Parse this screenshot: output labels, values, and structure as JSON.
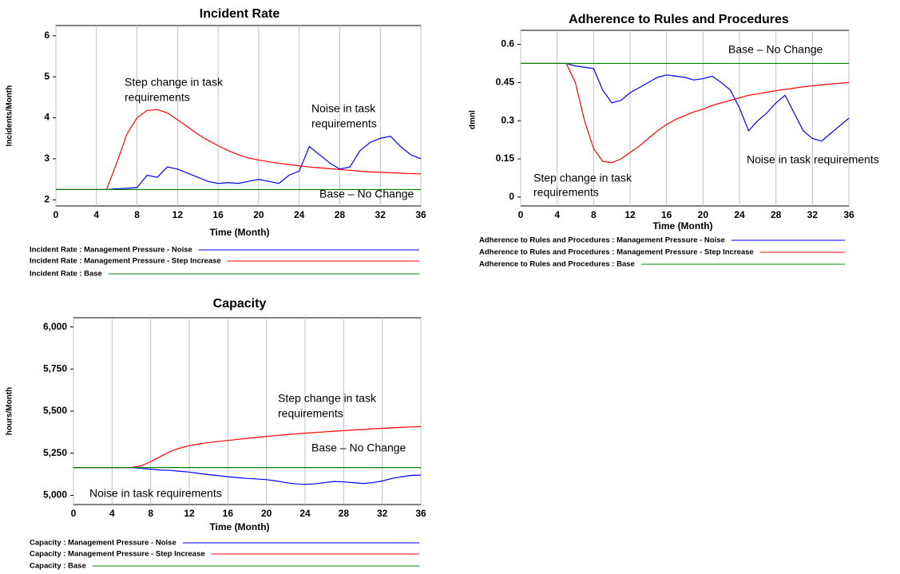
{
  "chart_data": [
    {
      "type": "line",
      "title": "Incident Rate",
      "x_label": "Time (Month)",
      "y_label": "Incidents/Month",
      "x": [
        0,
        1,
        2,
        3,
        4,
        5,
        6,
        7,
        8,
        9,
        10,
        11,
        12,
        13,
        14,
        15,
        16,
        17,
        18,
        19,
        20,
        21,
        22,
        23,
        24,
        25,
        26,
        27,
        28,
        29,
        30,
        31,
        32,
        33,
        34,
        35,
        36
      ],
      "xlim": [
        0,
        36
      ],
      "xticks": [
        0,
        4,
        8,
        12,
        16,
        20,
        24,
        28,
        32,
        36
      ],
      "ylim": [
        1.85,
        6.25
      ],
      "yticks": [
        2,
        3,
        4,
        5,
        6
      ],
      "grid": true,
      "series": [
        {
          "name": "Incident Rate : Management Pressure - Noise",
          "color": "#0000ff",
          "values": [
            2.25,
            2.25,
            2.25,
            2.25,
            2.25,
            2.25,
            2.27,
            2.28,
            2.3,
            2.6,
            2.55,
            2.8,
            2.75,
            2.65,
            2.55,
            2.45,
            2.4,
            2.42,
            2.4,
            2.45,
            2.5,
            2.45,
            2.4,
            2.6,
            2.7,
            3.3,
            3.1,
            2.9,
            2.75,
            2.8,
            3.2,
            3.4,
            3.5,
            3.55,
            3.3,
            3.1,
            3.0
          ]
        },
        {
          "name": "Incident Rate : Management Pressure - Step Increase",
          "color": "#ff0000",
          "values": [
            2.25,
            2.25,
            2.25,
            2.25,
            2.25,
            2.25,
            2.9,
            3.6,
            4.0,
            4.18,
            4.2,
            4.12,
            3.95,
            3.78,
            3.6,
            3.45,
            3.32,
            3.2,
            3.1,
            3.02,
            2.97,
            2.93,
            2.89,
            2.86,
            2.83,
            2.8,
            2.78,
            2.76,
            2.74,
            2.72,
            2.7,
            2.68,
            2.67,
            2.66,
            2.65,
            2.64,
            2.63
          ]
        },
        {
          "name": "Incident Rate : Base",
          "color": "#008000",
          "values": [
            2.25,
            2.25,
            2.25,
            2.25,
            2.25,
            2.25,
            2.25,
            2.25,
            2.25,
            2.25,
            2.25,
            2.25,
            2.25,
            2.25,
            2.25,
            2.25,
            2.25,
            2.25,
            2.25,
            2.25,
            2.25,
            2.25,
            2.25,
            2.25,
            2.25,
            2.25,
            2.25,
            2.25,
            2.25,
            2.25,
            2.25,
            2.25,
            2.25,
            2.25,
            2.25,
            2.25,
            2.25
          ]
        }
      ],
      "annotations": [
        [
          "Step change in task",
          "requirements"
        ],
        [
          "Noise in task",
          "requirements"
        ],
        [
          "Base – No Change"
        ]
      ]
    },
    {
      "type": "line",
      "title": "Adherence to Rules and Procedures",
      "x_label": "Time (Month)",
      "y_label": "dmnl",
      "x": [
        0,
        1,
        2,
        3,
        4,
        5,
        6,
        7,
        8,
        9,
        10,
        11,
        12,
        13,
        14,
        15,
        16,
        17,
        18,
        19,
        20,
        21,
        22,
        23,
        24,
        25,
        26,
        27,
        28,
        29,
        30,
        31,
        32,
        33,
        34,
        35,
        36
      ],
      "xlim": [
        0,
        36
      ],
      "xticks": [
        0,
        4,
        8,
        12,
        16,
        20,
        24,
        28,
        32,
        36
      ],
      "ylim": [
        -0.035,
        0.655
      ],
      "yticks": [
        0,
        0.15,
        0.3,
        0.45,
        0.6
      ],
      "grid": true,
      "series": [
        {
          "name": "Adherence to Rules and Procedures : Management Pressure - Noise",
          "color": "#0000ff",
          "values": [
            0.525,
            0.525,
            0.525,
            0.525,
            0.525,
            0.525,
            0.515,
            0.51,
            0.505,
            0.42,
            0.37,
            0.38,
            0.41,
            0.43,
            0.45,
            0.47,
            0.48,
            0.475,
            0.47,
            0.46,
            0.465,
            0.475,
            0.45,
            0.42,
            0.35,
            0.26,
            0.3,
            0.33,
            0.37,
            0.4,
            0.33,
            0.26,
            0.23,
            0.22,
            0.25,
            0.28,
            0.31
          ]
        },
        {
          "name": "Adherence to Rules and Procedures : Management Pressure - Step Increase",
          "color": "#ff0000",
          "values": [
            0.525,
            0.525,
            0.525,
            0.525,
            0.525,
            0.525,
            0.45,
            0.3,
            0.19,
            0.14,
            0.135,
            0.15,
            0.175,
            0.2,
            0.23,
            0.26,
            0.285,
            0.305,
            0.32,
            0.335,
            0.345,
            0.36,
            0.37,
            0.38,
            0.39,
            0.4,
            0.405,
            0.412,
            0.418,
            0.423,
            0.428,
            0.433,
            0.437,
            0.441,
            0.444,
            0.447,
            0.45
          ]
        },
        {
          "name": "Adherence to Rules and Procedures : Base",
          "color": "#008000",
          "values": [
            0.525,
            0.525,
            0.525,
            0.525,
            0.525,
            0.525,
            0.525,
            0.525,
            0.525,
            0.525,
            0.525,
            0.525,
            0.525,
            0.525,
            0.525,
            0.525,
            0.525,
            0.525,
            0.525,
            0.525,
            0.525,
            0.525,
            0.525,
            0.525,
            0.525,
            0.525,
            0.525,
            0.525,
            0.525,
            0.525,
            0.525,
            0.525,
            0.525,
            0.525,
            0.525,
            0.525,
            0.525
          ]
        }
      ],
      "annotations": [
        [
          "Base – No Change"
        ],
        [
          "Step change in task",
          "requirements"
        ],
        [
          "Noise in task requirements"
        ]
      ]
    },
    {
      "type": "line",
      "title": "Capacity",
      "x_label": "Time (Month)",
      "y_label": "hours/Month",
      "x": [
        0,
        1,
        2,
        3,
        4,
        5,
        6,
        7,
        8,
        9,
        10,
        11,
        12,
        13,
        14,
        15,
        16,
        17,
        18,
        19,
        20,
        21,
        22,
        23,
        24,
        25,
        26,
        27,
        28,
        29,
        30,
        31,
        32,
        33,
        34,
        35,
        36
      ],
      "xlim": [
        0,
        36
      ],
      "xticks": [
        0,
        4,
        8,
        12,
        16,
        20,
        24,
        28,
        32,
        36
      ],
      "ylim": [
        4945,
        6055
      ],
      "yticks": [
        {
          "value": 5000,
          "label": "5,000"
        },
        {
          "value": 5250,
          "label": "5,250"
        },
        {
          "value": 5500,
          "label": "5,500"
        },
        {
          "value": 5750,
          "label": "5,750"
        },
        {
          "value": 6000,
          "label": "6,000"
        }
      ],
      "grid": true,
      "series": [
        {
          "name": "Capacity : Management Pressure - Noise",
          "color": "#0000ff",
          "values": [
            5165,
            5165,
            5165,
            5165,
            5165,
            5165,
            5165,
            5160,
            5155,
            5150,
            5148,
            5143,
            5138,
            5130,
            5123,
            5117,
            5110,
            5105,
            5100,
            5097,
            5093,
            5085,
            5075,
            5068,
            5065,
            5068,
            5075,
            5082,
            5080,
            5075,
            5070,
            5075,
            5085,
            5100,
            5110,
            5118,
            5120
          ]
        },
        {
          "name": "Capacity : Management Pressure - Step Increase",
          "color": "#ff0000",
          "values": [
            5165,
            5165,
            5165,
            5165,
            5165,
            5165,
            5165,
            5175,
            5200,
            5230,
            5260,
            5280,
            5295,
            5305,
            5313,
            5320,
            5326,
            5332,
            5338,
            5344,
            5350,
            5355,
            5360,
            5365,
            5369,
            5373,
            5377,
            5381,
            5384,
            5388,
            5391,
            5395,
            5398,
            5401,
            5404,
            5406,
            5408
          ]
        },
        {
          "name": "Capacity : Base",
          "color": "#008000",
          "values": [
            5165,
            5165,
            5165,
            5165,
            5165,
            5165,
            5165,
            5165,
            5165,
            5165,
            5165,
            5165,
            5165,
            5165,
            5165,
            5165,
            5165,
            5165,
            5165,
            5165,
            5165,
            5165,
            5165,
            5165,
            5165,
            5165,
            5165,
            5165,
            5165,
            5165,
            5165,
            5165,
            5165,
            5165,
            5165,
            5165,
            5165
          ]
        }
      ],
      "annotations": [
        [
          "Step change in task",
          "requirements"
        ],
        [
          "Base – No Change"
        ],
        [
          "Noise in task requirements"
        ]
      ]
    }
  ]
}
